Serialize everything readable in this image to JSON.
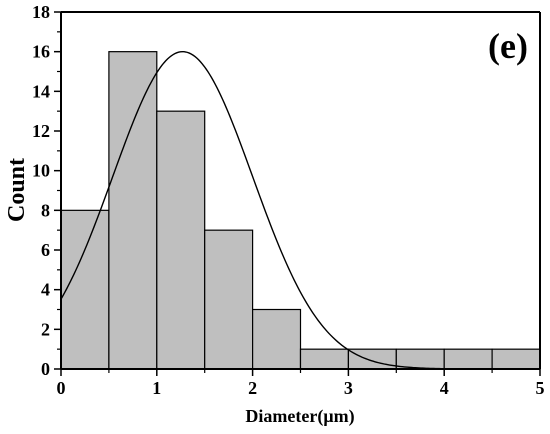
{
  "chart_data": {
    "type": "bar",
    "subtype": "histogram_with_normal_fit",
    "panel_label": "(e)",
    "xlabel": "Diameter(μm)",
    "ylabel": "Count",
    "xlim": [
      0,
      5
    ],
    "ylim": [
      0,
      18
    ],
    "x_ticks": [
      0,
      1,
      2,
      3,
      4,
      5
    ],
    "y_ticks": [
      0,
      2,
      4,
      6,
      8,
      10,
      12,
      14,
      16,
      18
    ],
    "grid": false,
    "legend": "none",
    "bins": [
      {
        "start": 0.0,
        "end": 0.5,
        "count": 8
      },
      {
        "start": 0.5,
        "end": 1.0,
        "count": 16
      },
      {
        "start": 1.0,
        "end": 1.5,
        "count": 13
      },
      {
        "start": 1.5,
        "end": 2.0,
        "count": 7
      },
      {
        "start": 2.0,
        "end": 2.5,
        "count": 3
      },
      {
        "start": 2.5,
        "end": 3.0,
        "count": 1
      },
      {
        "start": 3.0,
        "end": 3.5,
        "count": 1
      },
      {
        "start": 3.5,
        "end": 4.0,
        "count": 1
      },
      {
        "start": 4.0,
        "end": 4.5,
        "count": 1
      },
      {
        "start": 4.5,
        "end": 5.0,
        "count": 1
      }
    ],
    "fit_curve": {
      "type": "normal",
      "peak_x": 1.27,
      "peak_y": 16.0,
      "sigma": 0.73,
      "x_range": [
        0,
        4.6
      ]
    },
    "colors": {
      "bar_fill": "#bfbfbf",
      "bar_stroke": "#000000",
      "curve": "#000000",
      "axis": "#000000"
    }
  }
}
